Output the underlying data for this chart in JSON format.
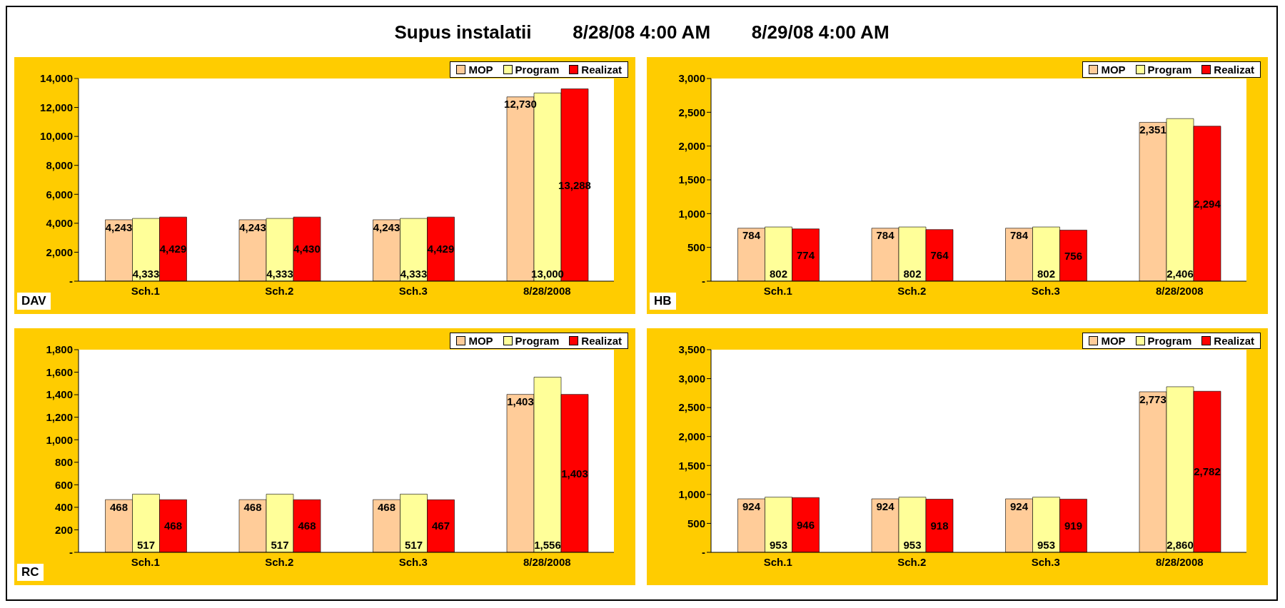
{
  "chart_data": [
    {
      "type": "bar",
      "title": "DAV",
      "annotations": [
        "Supus instalatii        8/28/08 4:00 AM        8/29/08 4:00 AM"
      ],
      "categories": [
        "Sch.1",
        "Sch.2",
        "Sch.3",
        "8/28/2008"
      ],
      "series": [
        {
          "name": "MOP",
          "color": "#ffcc99",
          "values": [
            4243,
            4243,
            4243,
            12730
          ],
          "value_labels": [
            "4,243",
            "4,243",
            "4,243",
            "12,730"
          ]
        },
        {
          "name": "Program",
          "color": "#ffff99",
          "values": [
            4333,
            4333,
            4333,
            13000
          ],
          "value_labels": [
            "4,333",
            "4,333",
            "4,333",
            "13,000"
          ]
        },
        {
          "name": "Realizat",
          "color": "#ff0000",
          "values": [
            4429,
            4430,
            4429,
            13288
          ],
          "value_labels": [
            "4,429",
            "4,430",
            "4,429",
            "13,288"
          ]
        }
      ],
      "ylim": [
        0,
        14000
      ],
      "yticks": [
        {
          "value": 0,
          "label": "-"
        },
        {
          "value": 2000,
          "label": "2,000"
        },
        {
          "value": 4000,
          "label": "4,000"
        },
        {
          "value": 6000,
          "label": "6,000"
        },
        {
          "value": 8000,
          "label": "8,000"
        },
        {
          "value": 10000,
          "label": "10,000"
        },
        {
          "value": 12000,
          "label": "12,000"
        },
        {
          "value": 14000,
          "label": "14,000"
        }
      ],
      "legend": "top right",
      "grid": false
    },
    {
      "type": "bar",
      "title": "HB",
      "categories": [
        "Sch.1",
        "Sch.2",
        "Sch.3",
        "8/28/2008"
      ],
      "series": [
        {
          "name": "MOP",
          "color": "#ffcc99",
          "values": [
            784,
            784,
            784,
            2351
          ],
          "value_labels": [
            "784",
            "784",
            "784",
            "2,351"
          ]
        },
        {
          "name": "Program",
          "color": "#ffff99",
          "values": [
            802,
            802,
            802,
            2406
          ],
          "value_labels": [
            "802",
            "802",
            "802",
            "2,406"
          ]
        },
        {
          "name": "Realizat",
          "color": "#ff0000",
          "values": [
            774,
            764,
            756,
            2294
          ],
          "value_labels": [
            "774",
            "764",
            "756",
            "2,294"
          ]
        }
      ],
      "ylim": [
        0,
        3000
      ],
      "yticks": [
        {
          "value": 0,
          "label": "-"
        },
        {
          "value": 500,
          "label": "500"
        },
        {
          "value": 1000,
          "label": "1,000"
        },
        {
          "value": 1500,
          "label": "1,500"
        },
        {
          "value": 2000,
          "label": "2,000"
        },
        {
          "value": 2500,
          "label": "2,500"
        },
        {
          "value": 3000,
          "label": "3,000"
        }
      ],
      "legend": "top right",
      "grid": false
    },
    {
      "type": "bar",
      "title": "RC",
      "categories": [
        "Sch.1",
        "Sch.2",
        "Sch.3",
        "8/28/2008"
      ],
      "series": [
        {
          "name": "MOP",
          "color": "#ffcc99",
          "values": [
            468,
            468,
            468,
            1403
          ],
          "value_labels": [
            "468",
            "468",
            "468",
            "1,403"
          ]
        },
        {
          "name": "Program",
          "color": "#ffff99",
          "values": [
            517,
            517,
            517,
            1556
          ],
          "value_labels": [
            "517",
            "517",
            "517",
            "1,556"
          ]
        },
        {
          "name": "Realizat",
          "color": "#ff0000",
          "values": [
            468,
            468,
            467,
            1403
          ],
          "value_labels": [
            "468",
            "468",
            "467",
            "1,403"
          ]
        }
      ],
      "ylim": [
        0,
        1800
      ],
      "yticks": [
        {
          "value": 0,
          "label": "-"
        },
        {
          "value": 200,
          "label": "200"
        },
        {
          "value": 400,
          "label": "400"
        },
        {
          "value": 600,
          "label": "600"
        },
        {
          "value": 800,
          "label": "800"
        },
        {
          "value": 1000,
          "label": "1,000"
        },
        {
          "value": 1200,
          "label": "1,200"
        },
        {
          "value": 1400,
          "label": "1,400"
        },
        {
          "value": 1600,
          "label": "1,600"
        },
        {
          "value": 1800,
          "label": "1,800"
        }
      ],
      "legend": "top right",
      "grid": false
    },
    {
      "type": "bar",
      "categories": [
        "Sch.1",
        "Sch.2",
        "Sch.3",
        "8/28/2008"
      ],
      "series": [
        {
          "name": "MOP",
          "color": "#ffcc99",
          "values": [
            924,
            924,
            924,
            2773
          ],
          "value_labels": [
            "924",
            "924",
            "924",
            "2,773"
          ]
        },
        {
          "name": "Program",
          "color": "#ffff99",
          "values": [
            953,
            953,
            953,
            2860
          ],
          "value_labels": [
            "953",
            "953",
            "953",
            "2,860"
          ]
        },
        {
          "name": "Realizat",
          "color": "#ff0000",
          "values": [
            946,
            918,
            919,
            2782
          ],
          "value_labels": [
            "946",
            "918",
            "919",
            "2,782"
          ]
        }
      ],
      "ylim": [
        0,
        3500
      ],
      "yticks": [
        {
          "value": 0,
          "label": "-"
        },
        {
          "value": 500,
          "label": "500"
        },
        {
          "value": 1000,
          "label": "1,000"
        },
        {
          "value": 1500,
          "label": "1,500"
        },
        {
          "value": 2000,
          "label": "2,000"
        },
        {
          "value": 2500,
          "label": "2,500"
        },
        {
          "value": 3000,
          "label": "3,000"
        },
        {
          "value": 3500,
          "label": "3,500"
        }
      ],
      "legend": "top right",
      "grid": false
    }
  ]
}
